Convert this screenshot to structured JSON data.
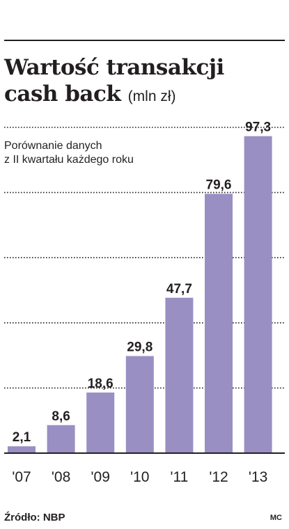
{
  "header": {
    "title_line1": "Wartość transakcji",
    "title_line2": "cash back",
    "unit": "(mln zł)",
    "subtitle_line1": "Porównanie danych",
    "subtitle_line2": "z II kwartału każdego roku"
  },
  "footer": {
    "source": "Źródło: NBP",
    "credit": "MC"
  },
  "colors": {
    "bar": "#9a8fc3",
    "grid": "#231f20",
    "text": "#231f20"
  },
  "chart_data": {
    "type": "bar",
    "categories": [
      "'07",
      "'08",
      "'09",
      "'10",
      "'11",
      "'12",
      "'13"
    ],
    "values": [
      2.1,
      8.6,
      18.6,
      29.8,
      47.7,
      79.6,
      97.3
    ],
    "value_labels": [
      "2,1",
      "8,6",
      "18,6",
      "29,8",
      "47,7",
      "79,6",
      "97,3"
    ],
    "title": "Wartość transakcji cash back",
    "ylabel": "",
    "xlabel": "",
    "ylim": [
      0,
      100
    ],
    "grid": true,
    "grid_style": "dotted",
    "legend": "none"
  }
}
